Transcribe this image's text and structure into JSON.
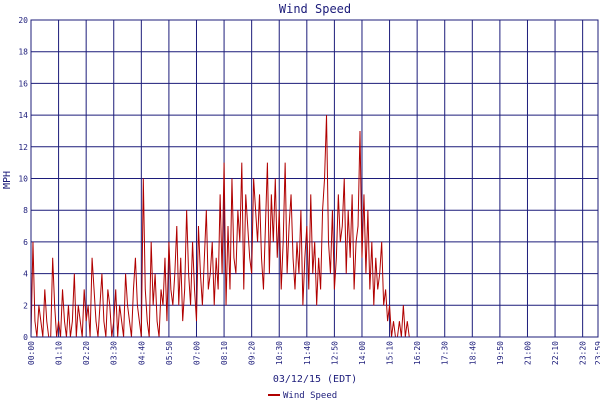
{
  "chart_data": {
    "type": "line",
    "title": "Wind Speed",
    "ylabel": "MPH",
    "xlabel": "03/12/15 (EDT)",
    "ylim": [
      0,
      20
    ],
    "yticks": [
      0,
      2,
      4,
      6,
      8,
      10,
      12,
      14,
      16,
      18,
      20
    ],
    "xticks": [
      "00:00",
      "01:10",
      "02:20",
      "03:30",
      "04:40",
      "05:50",
      "07:00",
      "08:10",
      "09:20",
      "10:30",
      "11:40",
      "12:50",
      "14:00",
      "15:10",
      "16:20",
      "17:30",
      "18:40",
      "19:50",
      "21:00",
      "22:10",
      "23:20",
      "23:59"
    ],
    "grid": true,
    "legend_position": "bottom-left",
    "colors": {
      "series": "#b00000",
      "grid": "#1c1c7a",
      "text": "#1c1c7a"
    },
    "series": [
      {
        "name": "Wind Speed",
        "x_start": "00:00",
        "x_end": "23:59",
        "step_minutes": 5,
        "values": [
          0,
          6,
          1,
          0,
          2,
          1,
          0,
          3,
          1,
          0,
          0,
          5,
          2,
          0,
          1,
          0,
          3,
          1,
          0,
          2,
          0,
          1,
          4,
          0,
          2,
          1,
          0,
          3,
          1,
          2,
          0,
          5,
          3,
          1,
          0,
          2,
          4,
          1,
          0,
          3,
          2,
          0,
          1,
          3,
          0,
          2,
          1,
          0,
          4,
          2,
          1,
          0,
          3,
          5,
          2,
          1,
          0,
          10,
          3,
          1,
          0,
          6,
          2,
          4,
          1,
          0,
          3,
          2,
          5,
          1,
          6,
          3,
          2,
          4,
          7,
          2,
          5,
          1,
          3,
          8,
          4,
          2,
          6,
          3,
          1,
          7,
          4,
          2,
          5,
          8,
          3,
          4,
          6,
          2,
          5,
          3,
          9,
          4,
          11,
          2,
          7,
          3,
          10,
          5,
          4,
          8,
          6,
          11,
          3,
          9,
          7,
          5,
          4,
          10,
          8,
          6,
          9,
          5,
          3,
          7,
          11,
          4,
          9,
          6,
          10,
          5,
          8,
          3,
          6,
          11,
          4,
          7,
          9,
          5,
          3,
          6,
          4,
          8,
          2,
          5,
          7,
          3,
          9,
          4,
          6,
          2,
          5,
          3,
          8,
          10,
          14,
          6,
          4,
          8,
          3,
          5,
          9,
          6,
          7,
          10,
          4,
          8,
          5,
          9,
          3,
          6,
          7,
          13,
          5,
          9,
          4,
          8,
          3,
          6,
          2,
          5,
          3,
          4,
          6,
          2,
          3,
          1,
          2,
          0,
          1,
          0,
          0,
          1,
          0,
          2,
          0,
          1,
          0,
          0,
          0,
          0,
          0,
          0,
          0,
          0,
          0,
          0,
          0,
          0,
          0,
          0,
          0,
          0,
          0,
          0,
          0,
          0,
          0,
          0,
          0,
          0,
          0,
          0,
          0,
          0,
          0,
          0,
          0,
          0,
          0,
          0,
          0,
          0,
          0,
          0,
          0,
          0,
          0,
          0,
          0,
          0,
          0,
          0,
          0,
          0,
          0,
          0,
          0,
          0,
          0,
          0,
          0,
          0,
          0,
          0,
          0,
          0,
          0,
          0,
          0,
          0,
          0,
          0,
          0,
          0,
          0,
          0,
          0,
          0,
          0,
          0,
          0,
          0,
          0,
          0,
          0,
          0,
          0,
          0,
          0,
          0,
          0,
          0,
          0,
          0,
          0,
          0,
          0,
          0,
          0,
          0,
          0,
          0,
          0,
          0,
          0,
          0,
          0,
          0,
          0
        ]
      }
    ]
  }
}
